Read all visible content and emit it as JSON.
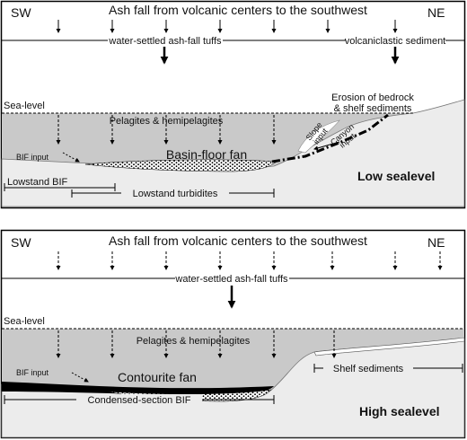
{
  "panels": [
    {
      "sw": "SW",
      "ne": "NE",
      "title": "Ash fall from volcanic centers to the southwest",
      "tuffs": "water-settled ash-fall tuffs",
      "volcaniclastic": "volcaniclastic sediment",
      "sea_level": "Sea-level",
      "pelagites": "Pelagites & hemipelagites",
      "erosion": [
        "Erosion of bedrock",
        "& shelf sediments"
      ],
      "slope_input": [
        "Slope",
        "input"
      ],
      "canyon_input": [
        "Canyon",
        "input"
      ],
      "bif_input": "BIF input",
      "fan": "Basin-floor fan",
      "stage": "Low sealevel",
      "brackets": [
        "Lowstand BIF",
        "Lowstand turbidites"
      ]
    },
    {
      "sw": "SW",
      "ne": "NE",
      "title": "Ash fall from volcanic centers to the southwest",
      "tuffs": "water-settled ash-fall tuffs",
      "sea_level": "Sea-level",
      "pelagites": "Pelagites & hemipelagites",
      "bif_input": "BIF input",
      "fan": "Contourite fan",
      "stage": "High sealevel",
      "brackets": [
        "Shelf sediments",
        "Condensed-section BIF"
      ]
    }
  ]
}
